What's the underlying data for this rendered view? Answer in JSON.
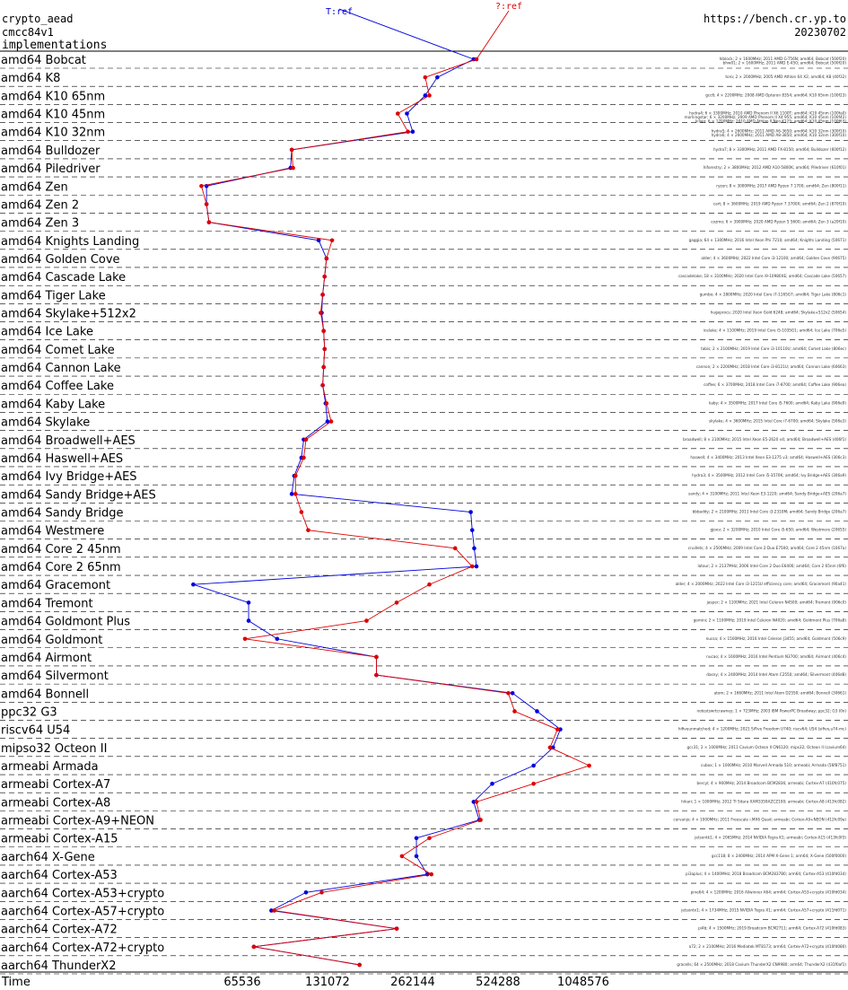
{
  "header": {
    "left_lines": [
      "crypto_aead",
      "cmcc84v1",
      "implementations"
    ],
    "right_lines": [
      "https://bench.cr.yp.to",
      "20230702"
    ]
  },
  "chart_data": {
    "type": "line",
    "xlabel": "Time",
    "xscale": "log",
    "xticks": [
      65536,
      131072,
      262144,
      524288,
      1048576
    ],
    "series": [
      {
        "name": "T:ref",
        "color": "#0000dd"
      },
      {
        "name": "?:ref",
        "color": "#dd0000"
      }
    ],
    "rows": [
      {
        "label": "amd64 Bobcat",
        "ref_blue": 430000,
        "ref_red": 440000,
        "notes": [
          "hiblock; 2 × 1600MHz; 2011 AMD G-T56N; amd64; Bobcat (500f20)",
          "bhw01; 2 × 1600MHz; 2011 AMD E-450; amd64; Bobcat (500f20)"
        ]
      },
      {
        "label": "amd64 K8",
        "ref_blue": 320000,
        "ref_red": 290000,
        "notes": [
          "toro; 2 × 2000MHz; 2005 AMD Athlon 64 X2; amd64; K8 (40f32)"
        ]
      },
      {
        "label": "amd64 K10 65nm",
        "ref_blue": 290000,
        "ref_red": 300000,
        "notes": [
          "gcc6; 4 × 2200MHz; 2008 AMD Opteron 8354; amd64; K10 65nm (100f23)"
        ]
      },
      {
        "label": "amd64 K10 45nm",
        "ref_blue": 250000,
        "ref_red": 232000,
        "notes": [
          "hydra4; 6 × 3300MHz; 2010 AMD Phenom II X6 1100T; amd64; K10 45nm (100fa0)",
          "morningstar; 6 × 3200MHz; 2009 AMD Phenom II X4 955; amd64; K10 45nm (100f42)",
          "kilian; 6 × 1700MHz; 2010 AMD Athlon II Neo K125; amd64; K10 45nm (100f63)"
        ]
      },
      {
        "label": "amd64 K10 32nm",
        "ref_blue": 262000,
        "ref_red": 252000,
        "notes": [
          "hydra5; 4 × 2600MHz; 2011 AMD A6-3650; amd64; K10 32nm (300f10)",
          "hydra6; 4 × 2600MHz; 2011 AMD A8-3850; amd64; K10 32nm (300f10)"
        ]
      },
      {
        "label": "amd64 Bulldozer",
        "ref_blue": 98000,
        "ref_red": 98000,
        "notes": [
          "hydra7; 8 × 3300MHz; 2011 AMD FX-8150; amd64; Bulldozer (600f12)"
        ]
      },
      {
        "label": "amd64 Piledriver",
        "ref_blue": 97000,
        "ref_red": 99000,
        "notes": [
          "hiforestry; 2 × 3800MHz; 2012 AMD A10-5800K; amd64; Piledriver (610f01)"
        ]
      },
      {
        "label": "amd64 Zen",
        "ref_blue": 49000,
        "ref_red": 47000,
        "notes": [
          "ryzen; 8 × 3000MHz; 2017 AMD Ryzen 7 1700; amd64; Zen (800f11)"
        ]
      },
      {
        "label": "amd64 Zen 2",
        "ref_blue": 49000,
        "ref_red": 49000,
        "notes": [
          "cart; 8 × 3600MHz; 2019 AMD Ryzen 7 3700X; amd64; Zen 2 (870f10)"
        ]
      },
      {
        "label": "amd64 Zen 3",
        "ref_blue": 50000,
        "ref_red": 50000,
        "notes": [
          "cozmo; 6 × 3900MHz; 2020 AMD Ryzen 5 5600; amd64; Zen 3 (a20f10)"
        ]
      },
      {
        "label": "amd64 Knights Landing",
        "ref_blue": 122000,
        "ref_red": 136000,
        "notes": [
          "gaggia; 64 × 1300MHz; 2016 Intel Xeon Phi 7210; amd64; Knights Landing (50671)"
        ]
      },
      {
        "label": "amd64 Golden Cove",
        "ref_blue": 130000,
        "ref_red": 130000,
        "notes": [
          "alder; 4 × 3600MHz; 2022 Intel Core i3-12100; amd64; Golden Cove (90675)"
        ]
      },
      {
        "label": "amd64 Cascade Lake",
        "ref_blue": 128000,
        "ref_red": 128000,
        "notes": [
          "cascadelake; 18 × 3100MHz; 2020 Intel Core i9-10980XE; amd64; Cascade Lake (50657)"
        ]
      },
      {
        "label": "amd64 Tiger Lake",
        "ref_blue": 126000,
        "ref_red": 126000,
        "notes": [
          "gumbo; 4 × 2800MHz; 2020 Intel Core i7-1165G7; amd64; Tiger Lake (806c1)"
        ]
      },
      {
        "label": "amd64 Skylake+512x2",
        "ref_blue": 125000,
        "ref_red": 124000,
        "notes": [
          "hugeprocs; 2020 Intel Xeon Gold 6248; amd64; Skylake+512x2 (50654)"
        ]
      },
      {
        "label": "amd64 Ice Lake",
        "ref_blue": 127000,
        "ref_red": 127000,
        "notes": [
          "icelake; 4 × 1100MHz; 2019 Intel Core i5-1035G1; amd64; Ice Lake (706e5)"
        ]
      },
      {
        "label": "amd64 Comet Lake",
        "ref_blue": 128000,
        "ref_red": 128000,
        "notes": [
          "tabis; 2 × 2100MHz; 2019 Intel Core i3-10110U; amd64; Comet Lake (806ec)"
        ]
      },
      {
        "label": "amd64 Cannon Lake",
        "ref_blue": 127000,
        "ref_red": 127000,
        "notes": [
          "cannon; 2 × 2200MHz; 2018 Intel Core i3-8121U; amd64; Cannon Lake (60663)"
        ]
      },
      {
        "label": "amd64 Coffee Lake",
        "ref_blue": 126000,
        "ref_red": 126000,
        "notes": [
          "coffee; 6 × 3700MHz; 2018 Intel Core i7-8700; amd64; Coffee Lake (906ea)"
        ]
      },
      {
        "label": "amd64 Kaby Lake",
        "ref_blue": 129000,
        "ref_red": 130000,
        "notes": [
          "kaby; 4 × 3500MHz; 2017 Intel Core i5-7600; amd64; Kaby Lake (906e9)"
        ]
      },
      {
        "label": "amd64 Skylake",
        "ref_blue": 131000,
        "ref_red": 135000,
        "notes": [
          "skylake; 4 × 3600MHz; 2015 Intel Core i7-6700; amd64; Skylake (506e3)"
        ]
      },
      {
        "label": "amd64 Broadwell+AES",
        "ref_blue": 108000,
        "ref_red": 110000,
        "notes": [
          "broadwell; 8 × 2100MHz; 2015 Intel Xeon E5-2620 v4; amd64; Broadwell+AES (406f1)"
        ]
      },
      {
        "label": "amd64 Haswell+AES",
        "ref_blue": 106000,
        "ref_red": 108000,
        "notes": [
          "haswell; 4 × 3400MHz; 2013 Intel Xeon E3-1275 v3; amd64; Haswell+AES (306c3)"
        ]
      },
      {
        "label": "amd64 Ivy Bridge+AES",
        "ref_blue": 100000,
        "ref_red": 101000,
        "notes": [
          "hydra3; 4 × 3500MHz; 2012 Intel Core i5-3570K; amd64; Ivy Bridge+AES (306a9)"
        ]
      },
      {
        "label": "amd64 Sandy Bridge+AES",
        "ref_blue": 98000,
        "ref_red": 101000,
        "notes": [
          "sandy; 4 × 3100MHz; 2011 Intel Xeon E3-1220; amd64; Sandy Bridge+AES (206a7)"
        ]
      },
      {
        "label": "amd64 Sandy Bridge",
        "ref_blue": 420000,
        "ref_red": 106000,
        "notes": [
          "bbbaddy; 2 × 2100MHz; 2011 Intel Core i3-2310M; amd64; Sandy Bridge (206a7)"
        ]
      },
      {
        "label": "amd64 Westmere",
        "ref_blue": 425000,
        "ref_red": 112000,
        "notes": [
          "gjoev; 2 × 3200MHz; 2010 Intel Core i5-650; amd64; Westmere (20655)"
        ]
      },
      {
        "label": "amd64 Core 2 45nm",
        "ref_blue": 432000,
        "ref_red": 370000,
        "notes": [
          "cruillets; 4 × 2500MHz; 2009 Intel Core 2 Duo E7500; amd64; Core 2 45nm (1067a)"
        ]
      },
      {
        "label": "amd64 Core 2 65nm",
        "ref_blue": 440000,
        "ref_red": 425000,
        "notes": [
          "latour; 2 × 2137MHz; 2006 Intel Core 2 Duo E6400; amd64; Core 2 65nm (6f6)"
        ]
      },
      {
        "label": "amd64 Gracemont",
        "ref_blue": 44000,
        "ref_red": 300000,
        "notes": [
          "alder; 4 × 2000MHz; 2022 Intel Core i3-1215U efficiency core; amd64; Gracemont (90a41)"
        ]
      },
      {
        "label": "amd64 Tremont",
        "ref_blue": 69000,
        "ref_red": 230000,
        "notes": [
          "jasper; 2 × 1100MHz; 2021 Intel Celeron N4500; amd64; Tremont (906c0)"
        ]
      },
      {
        "label": "amd64 Goldmont Plus",
        "ref_blue": 69000,
        "ref_red": 180000,
        "notes": [
          "gemini; 2 × 1100MHz; 2019 Intel Celeron N4020; amd64; Goldmont Plus (706a8)"
        ]
      },
      {
        "label": "amd64 Goldmont",
        "ref_blue": 87000,
        "ref_red": 67000,
        "notes": [
          "nucsa; 4 × 1500MHz; 2016 Intel Celeron J3455; amd64; Goldmont (506c9)"
        ]
      },
      {
        "label": "amd64 Airmont",
        "ref_blue": 195000,
        "ref_red": 195000,
        "notes": [
          "nucao; 4 × 1600MHz; 2016 Intel Pentium N3700; amd64; Airmont (406c4)"
        ]
      },
      {
        "label": "amd64 Silvermont",
        "ref_blue": 195000,
        "ref_red": 195000,
        "notes": [
          "dasny; 4 × 2400MHz; 2014 Intel Atom C2550; amd64; Silvermont (406d8)"
        ]
      },
      {
        "label": "amd64 Bonnell",
        "ref_blue": 590000,
        "ref_red": 570000,
        "notes": [
          "atom; 2 × 1660MHz; 2011 Intel Atom D2550; amd64; Bonnell (30661)"
        ]
      },
      {
        "label": "ppc32 G3",
        "ref_blue": 720000,
        "ref_red": 600000,
        "notes": [
          "notestswrtcrawney; 1 × 723MHz; 2003 IBM PowerPC Broadway; ppc32; G3 (0x)"
        ]
      },
      {
        "label": "riscv64 U54",
        "ref_blue": 870000,
        "ref_red": 850000,
        "notes": [
          "hifiveunmatched; 4 × 1200MHz; 2021 SiFive Freedom U740; riscv64; U54 (sifive,u74-mc)"
        ]
      },
      {
        "label": "mipso32 Octeon II",
        "ref_blue": 820000,
        "ref_red": 800000,
        "notes": [
          "gcc31; 2 × 1000MHz; 2011 Cavium Octeon II CN6120; mips32; Octeon II (cavium64)"
        ]
      },
      {
        "label": "armeabi Armada",
        "ref_blue": 700000,
        "ref_red": 1100000,
        "notes": [
          "cubox; 1 × 1000MHz; 2010 Marvell Armada 510; armeabi; Armada (56f8751)"
        ]
      },
      {
        "label": "armeabi Cortex-A7",
        "ref_blue": 500000,
        "ref_red": 700000,
        "notes": [
          "bercyl; 4 × 900MHz; 2014 Broadcom BCM2836; armeabi; Cortex-A7 (410fc075)"
        ]
      },
      {
        "label": "armeabi Cortex-A8",
        "ref_blue": 430000,
        "ref_red": 440000,
        "notes": [
          "hikari; 1 × 1000MHz; 2012 TI Sitara XAM3359AZCZ100; armeabi; Cortex-A8 (413fc082)"
        ]
      },
      {
        "label": "armeabi Cortex-A9+NEON",
        "ref_blue": 450000,
        "ref_red": 455000,
        "notes": [
          "cervanjo; 4 × 1000MHz; 2011 Freescale i.MX6 Quad; armeabi; Cortex-A9+NEON (412fc09a)"
        ]
      },
      {
        "label": "armeabi Cortex-A15",
        "ref_blue": 270000,
        "ref_red": 300000,
        "notes": [
          "jetsontk1; 4 × 2065MHz; 2014 NVIDIA Tegra K1; armeabi; Cortex-A15 (413fc0f3)"
        ]
      },
      {
        "label": "aarch64 X-Gene",
        "ref_blue": 270000,
        "ref_red": 240000,
        "notes": [
          "gcc118; 8 × 2400MHz; 2014 APM X-Gene 1; arm64; X-Gene (500f0000)"
        ]
      },
      {
        "label": "aarch64 Cortex-A53",
        "ref_blue": 295000,
        "ref_red": 305000,
        "notes": [
          "pi3aplus; 4 × 1400MHz; 2018 Broadcom BCM2837B0; arm64; Cortex-A53 (410fd034)"
        ]
      },
      {
        "label": "aarch64 Cortex-A53+crypto",
        "ref_blue": 110000,
        "ref_red": 125000,
        "notes": [
          "pine64; 4 × 1200MHz; 2016 Allwinner A64; arm64; Cortex-A53+crypto (410fd034)"
        ]
      },
      {
        "label": "aarch64 Cortex-A57+crypto",
        "ref_blue": 83000,
        "ref_red": 85000,
        "notes": [
          "jetsontx1; 4 × 1734MHz; 2015 NVIDIA Tegra X1; arm64; Cortex-A57+crypto (411fd071)"
        ]
      },
      {
        "label": "aarch64 Cortex-A72",
        "ref_blue": 230000,
        "ref_red": 230000,
        "notes": [
          "pi4b; 4 × 1500MHz; 2019 Broadcom BCM2711; arm64; Cortex-A72 (410fd083)"
        ]
      },
      {
        "label": "aarch64 Cortex-A72+crypto",
        "ref_blue": 72000,
        "ref_red": 72000,
        "notes": [
          "a72; 2 × 2100MHz; 2016 Mediatek MT8173; arm64; Cortex-A72+crypto (410fd080)"
        ]
      },
      {
        "label": "aarch64 ThunderX2",
        "ref_blue": 170000,
        "ref_red": 170000,
        "notes": [
          "gracells; 64 × 2500MHz; 2018 Cavium ThunderX2 CN9980; arm64; ThunderX2 (431f0af1)"
        ]
      }
    ]
  }
}
